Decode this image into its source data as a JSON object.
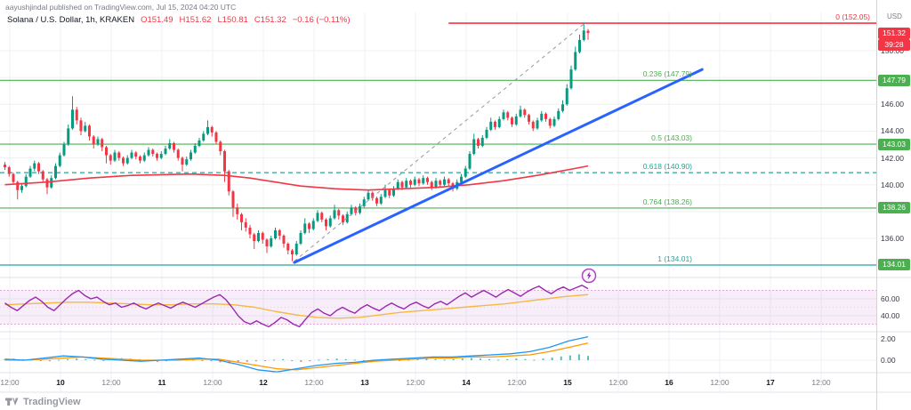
{
  "header": {
    "publish_note": "aayushjindal published on TradingView.com, Jul 15, 2024 04:20 UTC"
  },
  "legend": {
    "title": "Solana / U.S. Dollar, 1h, KRAKEN",
    "open": "O151.49",
    "high": "H151.62",
    "low": "L150.81",
    "close": "C151.32",
    "change": "−0.16 (−0.11%)"
  },
  "watermark": {
    "brand": "TradingView"
  },
  "chart_data": {
    "type": "candlestick",
    "symbol": "Solana / U.S. Dollar",
    "interval": "1h",
    "exchange": "KRAKEN",
    "currency": "USD",
    "ohlc": {
      "open": 151.49,
      "high": 151.62,
      "low": 150.81,
      "close": 151.32,
      "change": -0.16,
      "change_pct": "-0.11%"
    },
    "colors": {
      "up": "#089981",
      "down": "#f23645",
      "trend": "#2962ff",
      "ma": "#f23645",
      "rsi": "#9c27b0",
      "rsi_ma": "#f5b942",
      "macd_line": "#2196f3",
      "macd_signal": "#ff9800",
      "hist_up": "#26a69a",
      "hist_down": "#ef5350"
    },
    "price_axis": {
      "ticks": [
        {
          "label": "150.00",
          "price": 150
        },
        {
          "label": "146.00",
          "price": 146
        },
        {
          "label": "144.00",
          "price": 144
        },
        {
          "label": "142.00",
          "price": 142
        },
        {
          "label": "140.00",
          "price": 140
        },
        {
          "label": "136.00",
          "price": 136
        }
      ],
      "badges": [
        {
          "text": "151.32",
          "price": 151.32,
          "bg": "#f23645"
        },
        {
          "text": "39:28",
          "price": 150.44,
          "bg": "#f23645"
        },
        {
          "text": "147.79",
          "price": 147.79,
          "bg": "#4caf50"
        },
        {
          "text": "143.03",
          "price": 143.03,
          "bg": "#4caf50"
        },
        {
          "text": "138.26",
          "price": 138.26,
          "bg": "#4caf50"
        },
        {
          "text": "134.01",
          "price": 134.01,
          "bg": "#4caf50"
        }
      ]
    },
    "rsi_ticks": [
      {
        "label": "60.00",
        "value": 60
      },
      {
        "label": "40.00",
        "value": 40
      }
    ],
    "macd_ticks": [
      {
        "label": "2.00",
        "value": 2
      },
      {
        "label": "0.00",
        "value": 0
      }
    ],
    "time_axis": {
      "labels": [
        {
          "text": "12:00",
          "major": false
        },
        {
          "text": "10",
          "major": true
        },
        {
          "text": "12:00",
          "major": false
        },
        {
          "text": "11",
          "major": true
        },
        {
          "text": "12:00",
          "major": false
        },
        {
          "text": "12",
          "major": true
        },
        {
          "text": "12:00",
          "major": false
        },
        {
          "text": "13",
          "major": true
        },
        {
          "text": "12:00",
          "major": false
        },
        {
          "text": "14",
          "major": true
        },
        {
          "text": "12:00",
          "major": false
        },
        {
          "text": "15",
          "major": true
        },
        {
          "text": "12:00",
          "major": false
        },
        {
          "text": "16",
          "major": true
        },
        {
          "text": "12:00",
          "major": false
        },
        {
          "text": "17",
          "major": true
        },
        {
          "text": "12:00",
          "major": false
        }
      ]
    },
    "fib_levels": [
      {
        "label": "0 (152.05)",
        "price": 152.05,
        "color": "#f23645",
        "style": "solid",
        "from_t": 105,
        "near_axis": true
      },
      {
        "label": "0.236 (147.79)",
        "price": 147.79,
        "color": "#4caf50",
        "style": "solid"
      },
      {
        "label": "0.5 (143.03)",
        "price": 143.03,
        "color": "#4caf50",
        "style": "solid"
      },
      {
        "label": "0.618 (140.90)",
        "price": 140.9,
        "color": "#26a69a",
        "style": "dashed"
      },
      {
        "label": "0.764 (138.26)",
        "price": 138.26,
        "color": "#4caf50",
        "style": "solid"
      },
      {
        "label": "1 (134.01)",
        "price": 134.01,
        "color": "#26a69a",
        "style": "solid"
      }
    ],
    "trend_line": {
      "from": {
        "t": 68.5,
        "p": 134.2
      },
      "to": {
        "t": 165,
        "p": 148.6
      },
      "color": "#2962ff"
    },
    "dashed_line": {
      "from": {
        "t": 68.5,
        "p": 134.3
      },
      "to": {
        "t": 137,
        "p": 152.0
      },
      "color": "#9598a1"
    },
    "ma_line": {
      "color": "#f23645",
      "points": [
        [
          0,
          140.0
        ],
        [
          10,
          140.2
        ],
        [
          20,
          140.5
        ],
        [
          30,
          140.7
        ],
        [
          44,
          140.8
        ],
        [
          52,
          140.7
        ],
        [
          58,
          140.5
        ],
        [
          64,
          140.2
        ],
        [
          70,
          139.9
        ],
        [
          78,
          139.7
        ],
        [
          86,
          139.6
        ],
        [
          94,
          139.7
        ],
        [
          102,
          139.8
        ],
        [
          110,
          140.0
        ],
        [
          118,
          140.3
        ],
        [
          126,
          140.7
        ],
        [
          133,
          141.1
        ],
        [
          138,
          141.4
        ]
      ]
    },
    "candles": [
      [
        141.5,
        141.7,
        141.1,
        141.3
      ],
      [
        141.3,
        141.4,
        140.6,
        140.8
      ],
      [
        140.8,
        140.9,
        140.0,
        140.2
      ],
      [
        140.2,
        140.3,
        138.9,
        139.6
      ],
      [
        139.6,
        140.1,
        139.4,
        139.9
      ],
      [
        139.9,
        140.8,
        139.8,
        140.6
      ],
      [
        140.6,
        141.4,
        140.5,
        141.2
      ],
      [
        141.2,
        141.8,
        141.0,
        141.6
      ],
      [
        141.6,
        141.7,
        140.8,
        141.0
      ],
      [
        141.0,
        141.1,
        140.2,
        140.4
      ],
      [
        140.4,
        140.5,
        139.3,
        139.8
      ],
      [
        139.8,
        140.7,
        139.7,
        140.5
      ],
      [
        140.5,
        141.6,
        140.4,
        141.4
      ],
      [
        141.4,
        142.4,
        141.3,
        142.2
      ],
      [
        142.2,
        143.2,
        142.1,
        143.0
      ],
      [
        143.0,
        144.5,
        142.9,
        144.2
      ],
      [
        144.2,
        146.6,
        144.1,
        145.6
      ],
      [
        145.6,
        145.8,
        144.5,
        144.8
      ],
      [
        144.8,
        145.0,
        143.7,
        144.0
      ],
      [
        144.0,
        144.7,
        143.9,
        144.4
      ],
      [
        144.4,
        144.5,
        143.3,
        143.6
      ],
      [
        143.6,
        143.7,
        142.7,
        143.0
      ],
      [
        143.0,
        143.6,
        142.9,
        143.4
      ],
      [
        143.4,
        143.5,
        142.5,
        142.8
      ],
      [
        142.8,
        142.9,
        141.6,
        142.2
      ],
      [
        142.2,
        142.3,
        141.5,
        141.8
      ],
      [
        141.8,
        142.6,
        141.7,
        142.4
      ],
      [
        142.4,
        142.5,
        141.8,
        142.0
      ],
      [
        142.0,
        142.1,
        141.4,
        141.6
      ],
      [
        141.6,
        142.2,
        141.5,
        142.0
      ],
      [
        142.0,
        142.6,
        141.9,
        142.4
      ],
      [
        142.4,
        142.5,
        141.9,
        142.1
      ],
      [
        142.1,
        142.2,
        141.6,
        141.8
      ],
      [
        141.8,
        142.4,
        141.7,
        142.2
      ],
      [
        142.2,
        142.8,
        142.1,
        142.6
      ],
      [
        142.6,
        142.7,
        142.1,
        142.3
      ],
      [
        142.3,
        142.4,
        141.8,
        142.0
      ],
      [
        142.0,
        142.5,
        141.9,
        142.3
      ],
      [
        142.3,
        142.9,
        142.2,
        142.7
      ],
      [
        142.7,
        143.4,
        142.6,
        143.1
      ],
      [
        143.1,
        143.2,
        142.4,
        142.6
      ],
      [
        142.6,
        142.7,
        141.8,
        142.0
      ],
      [
        142.0,
        142.1,
        141.0,
        141.5
      ],
      [
        141.5,
        142.1,
        141.4,
        141.9
      ],
      [
        141.9,
        142.6,
        141.8,
        142.4
      ],
      [
        142.4,
        143.1,
        142.3,
        142.9
      ],
      [
        142.9,
        143.5,
        142.8,
        143.3
      ],
      [
        143.3,
        144.0,
        143.2,
        143.8
      ],
      [
        143.8,
        144.8,
        143.7,
        144.3
      ],
      [
        144.3,
        144.4,
        143.6,
        143.9
      ],
      [
        143.9,
        144.0,
        143.0,
        143.2
      ],
      [
        143.2,
        143.3,
        142.2,
        142.5
      ],
      [
        142.5,
        142.6,
        140.2,
        141.0
      ],
      [
        141.0,
        141.1,
        139.2,
        139.5
      ],
      [
        139.5,
        139.6,
        137.6,
        138.3
      ],
      [
        138.3,
        138.6,
        137.4,
        137.8
      ],
      [
        137.8,
        137.9,
        136.6,
        137.2
      ],
      [
        137.2,
        137.5,
        136.5,
        136.8
      ],
      [
        136.8,
        137.0,
        136.0,
        136.3
      ],
      [
        136.3,
        136.4,
        135.2,
        135.8
      ],
      [
        135.8,
        136.6,
        135.7,
        136.4
      ],
      [
        136.4,
        136.5,
        135.6,
        135.9
      ],
      [
        135.9,
        136.0,
        134.9,
        135.4
      ],
      [
        135.4,
        136.2,
        135.3,
        136.0
      ],
      [
        136.0,
        136.8,
        135.9,
        136.6
      ],
      [
        136.6,
        136.7,
        135.9,
        136.2
      ],
      [
        136.2,
        136.3,
        135.3,
        135.6
      ],
      [
        135.6,
        135.7,
        134.8,
        135.1
      ],
      [
        135.1,
        135.2,
        134.3,
        134.8
      ],
      [
        134.8,
        135.8,
        134.7,
        135.6
      ],
      [
        135.6,
        136.6,
        135.5,
        136.4
      ],
      [
        136.4,
        137.5,
        136.3,
        137.1
      ],
      [
        137.1,
        137.2,
        136.4,
        136.7
      ],
      [
        136.7,
        137.5,
        136.6,
        137.3
      ],
      [
        137.3,
        138.1,
        137.2,
        137.9
      ],
      [
        137.9,
        138.0,
        137.2,
        137.4
      ],
      [
        137.4,
        137.5,
        136.6,
        136.9
      ],
      [
        136.9,
        137.7,
        136.8,
        137.5
      ],
      [
        137.5,
        138.5,
        137.4,
        138.1
      ],
      [
        138.1,
        138.2,
        137.4,
        137.7
      ],
      [
        137.7,
        137.8,
        137.0,
        137.2
      ],
      [
        137.2,
        138.0,
        137.1,
        137.8
      ],
      [
        137.8,
        138.5,
        137.7,
        138.3
      ],
      [
        138.3,
        138.4,
        137.7,
        137.9
      ],
      [
        137.9,
        138.6,
        137.8,
        138.4
      ],
      [
        138.4,
        139.1,
        138.3,
        138.9
      ],
      [
        138.9,
        139.6,
        138.8,
        139.4
      ],
      [
        139.4,
        139.5,
        138.8,
        139.0
      ],
      [
        139.0,
        139.1,
        138.4,
        138.6
      ],
      [
        138.6,
        139.3,
        138.5,
        139.1
      ],
      [
        139.1,
        140.0,
        139.0,
        139.6
      ],
      [
        139.6,
        139.7,
        139.0,
        139.2
      ],
      [
        139.2,
        139.9,
        139.1,
        139.7
      ],
      [
        139.7,
        140.4,
        139.6,
        140.2
      ],
      [
        140.2,
        140.3,
        139.6,
        139.8
      ],
      [
        139.8,
        140.5,
        139.7,
        140.3
      ],
      [
        140.3,
        140.4,
        139.8,
        140.0
      ],
      [
        140.0,
        140.6,
        139.9,
        140.4
      ],
      [
        140.4,
        140.5,
        139.9,
        140.1
      ],
      [
        140.1,
        140.7,
        140.0,
        140.5
      ],
      [
        140.5,
        140.6,
        140.0,
        140.2
      ],
      [
        140.2,
        140.3,
        139.6,
        139.8
      ],
      [
        139.8,
        140.5,
        139.7,
        140.3
      ],
      [
        140.3,
        140.4,
        139.8,
        140.0
      ],
      [
        140.0,
        140.6,
        139.9,
        140.4
      ],
      [
        140.4,
        140.5,
        139.9,
        140.1
      ],
      [
        140.1,
        140.2,
        139.5,
        139.7
      ],
      [
        139.7,
        140.4,
        139.6,
        140.2
      ],
      [
        140.2,
        140.8,
        140.1,
        140.6
      ],
      [
        140.6,
        141.4,
        140.5,
        141.2
      ],
      [
        141.2,
        142.5,
        141.1,
        142.3
      ],
      [
        142.3,
        143.8,
        142.2,
        143.4
      ],
      [
        143.4,
        143.5,
        142.7,
        142.9
      ],
      [
        142.9,
        143.7,
        142.8,
        143.5
      ],
      [
        143.5,
        144.3,
        143.4,
        144.1
      ],
      [
        144.1,
        145.0,
        144.0,
        144.7
      ],
      [
        144.7,
        144.8,
        144.1,
        144.3
      ],
      [
        144.3,
        145.1,
        144.2,
        144.9
      ],
      [
        144.9,
        145.6,
        144.8,
        145.4
      ],
      [
        145.4,
        145.5,
        144.8,
        145.0
      ],
      [
        145.0,
        145.1,
        144.3,
        144.5
      ],
      [
        144.5,
        145.3,
        144.4,
        145.1
      ],
      [
        145.1,
        145.9,
        145.0,
        145.6
      ],
      [
        145.6,
        145.7,
        145.0,
        145.2
      ],
      [
        145.2,
        145.3,
        144.5,
        144.7
      ],
      [
        144.7,
        144.8,
        144.0,
        144.2
      ],
      [
        144.2,
        145.0,
        144.1,
        144.8
      ],
      [
        144.8,
        145.5,
        144.7,
        145.3
      ],
      [
        145.3,
        145.4,
        144.7,
        144.9
      ],
      [
        144.9,
        145.0,
        144.2,
        144.4
      ],
      [
        144.4,
        145.1,
        144.3,
        144.9
      ],
      [
        144.9,
        145.7,
        144.8,
        145.5
      ],
      [
        145.5,
        146.3,
        145.4,
        146.0
      ],
      [
        146.0,
        147.5,
        145.9,
        147.2
      ],
      [
        147.2,
        148.9,
        147.1,
        148.6
      ],
      [
        148.6,
        150.3,
        148.5,
        149.9
      ],
      [
        149.9,
        151.2,
        149.8,
        150.8
      ],
      [
        150.8,
        152.05,
        150.7,
        151.5
      ],
      [
        151.49,
        151.62,
        150.81,
        151.32
      ]
    ],
    "rsi": {
      "band": [
        30,
        70
      ],
      "values": [
        55,
        50,
        46,
        52,
        58,
        62,
        57,
        50,
        46,
        53,
        60,
        66,
        70,
        64,
        60,
        62,
        57,
        53,
        55,
        50,
        52,
        55,
        51,
        48,
        52,
        55,
        52,
        49,
        53,
        56,
        53,
        50,
        54,
        58,
        62,
        65,
        59,
        50,
        40,
        33,
        30,
        34,
        30,
        27,
        32,
        38,
        35,
        30,
        27,
        36,
        44,
        48,
        43,
        40,
        46,
        50,
        46,
        43,
        49,
        53,
        49,
        46,
        51,
        55,
        51,
        48,
        53,
        56,
        52,
        49,
        54,
        57,
        53,
        58,
        63,
        67,
        62,
        66,
        70,
        66,
        62,
        67,
        71,
        67,
        63,
        68,
        72,
        75,
        70,
        66,
        71,
        74,
        70,
        73,
        76,
        72
      ],
      "ma_values": [
        53,
        54,
        55,
        56,
        56,
        55,
        54,
        53,
        53,
        54,
        54,
        53,
        50,
        45,
        41,
        38,
        37,
        38,
        41,
        44,
        46,
        48,
        50,
        52,
        54,
        57,
        60,
        63,
        65
      ]
    },
    "macd": {
      "line": [
        0.1,
        0.0,
        0.2,
        0.4,
        0.3,
        0.1,
        0.0,
        -0.1,
        0.0,
        0.1,
        0.2,
        0.0,
        -0.4,
        -0.9,
        -1.1,
        -0.8,
        -0.5,
        -0.3,
        -0.2,
        0.0,
        0.1,
        0.2,
        0.3,
        0.3,
        0.4,
        0.5,
        0.6,
        0.8,
        1.2,
        1.8,
        2.2
      ],
      "signal": [
        0.0,
        0.0,
        0.1,
        0.2,
        0.3,
        0.2,
        0.1,
        0.0,
        0.0,
        0.0,
        0.1,
        0.1,
        -0.2,
        -0.5,
        -0.8,
        -0.9,
        -0.7,
        -0.5,
        -0.3,
        -0.1,
        0.0,
        0.1,
        0.2,
        0.2,
        0.3,
        0.3,
        0.4,
        0.5,
        0.8,
        1.2,
        1.6
      ],
      "hist": [
        0.1,
        0.15,
        0.1,
        0.05,
        -0.05,
        -0.1,
        0.05,
        0.1,
        0.15,
        0.1,
        0.05,
        -0.05,
        0.1,
        0.2,
        0.15,
        0.1,
        -0.1,
        -0.15,
        -0.1,
        0.05,
        0.1,
        0.05,
        -0.05,
        -0.1,
        -0.2,
        -0.3,
        -0.25,
        -0.15,
        -0.1,
        -0.05,
        0.05,
        0.1,
        -0.05,
        -0.15,
        -0.1,
        0.05,
        0.1,
        0.15,
        0.1,
        0.05,
        -0.05,
        0.05,
        0.1,
        0.05,
        -0.05,
        0.05,
        0.1,
        0.15,
        0.1,
        0.05,
        0.1,
        0.15,
        0.2,
        0.15,
        0.1,
        0.05,
        0.1,
        0.15,
        0.1,
        0.05,
        0.15,
        0.25,
        0.35,
        0.45,
        0.55,
        0.4
      ]
    }
  }
}
